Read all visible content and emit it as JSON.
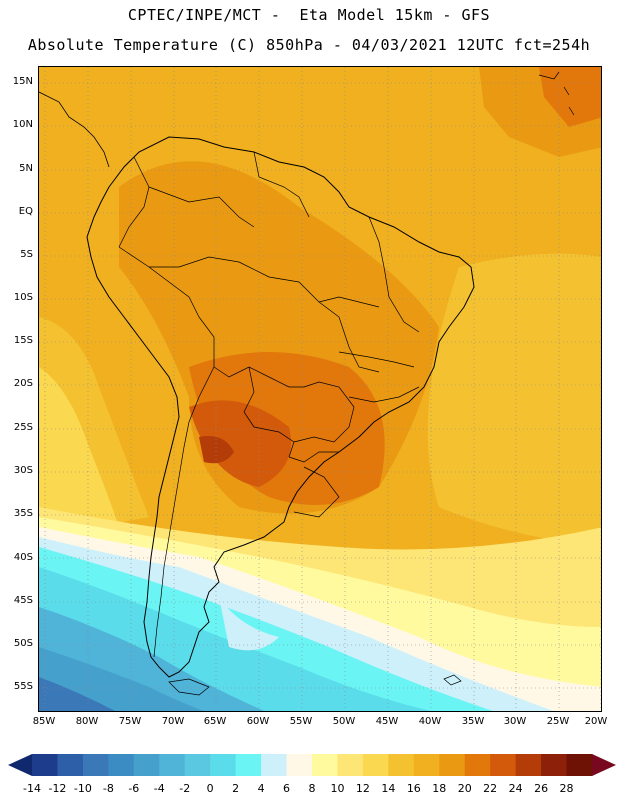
{
  "title": {
    "line1": "CPTEC/INPE/MCT -  Eta Model 15km - GFS",
    "line2": "Absolute Temperature (C) 850hPa - 04/03/2021 12UTC fct=254h"
  },
  "lat_labels": [
    "15N",
    "10N",
    "5N",
    "EQ",
    "5S",
    "10S",
    "15S",
    "20S",
    "25S",
    "30S",
    "35S",
    "40S",
    "45S",
    "50S",
    "55S"
  ],
  "lon_labels": [
    "85W",
    "80W",
    "75W",
    "70W",
    "65W",
    "60W",
    "55W",
    "50W",
    "45W",
    "40W",
    "35W",
    "30W",
    "25W",
    "20W"
  ],
  "colorbar": {
    "labels": [
      "-14",
      "-12",
      "-10",
      "-8",
      "-6",
      "-4",
      "-2",
      "0",
      "2",
      "4",
      "6",
      "8",
      "10",
      "12",
      "14",
      "16",
      "18",
      "20",
      "22",
      "24",
      "26",
      "28"
    ],
    "colors": [
      "#1e3c8c",
      "#2c5fa8",
      "#3a78b8",
      "#3c8cc4",
      "#46a0cc",
      "#50b4d8",
      "#5ac8e0",
      "#5adcea",
      "#6af4f4",
      "#cef0fa",
      "#fff8e6",
      "#fffa9e",
      "#fee676",
      "#fad850",
      "#f4c230",
      "#f0b020",
      "#ea9a12",
      "#e2780c",
      "#d25a0a",
      "#b43c08",
      "#8c2008",
      "#6e1206"
    ],
    "under_color": "#10286e",
    "over_color": "#78081e"
  }
}
